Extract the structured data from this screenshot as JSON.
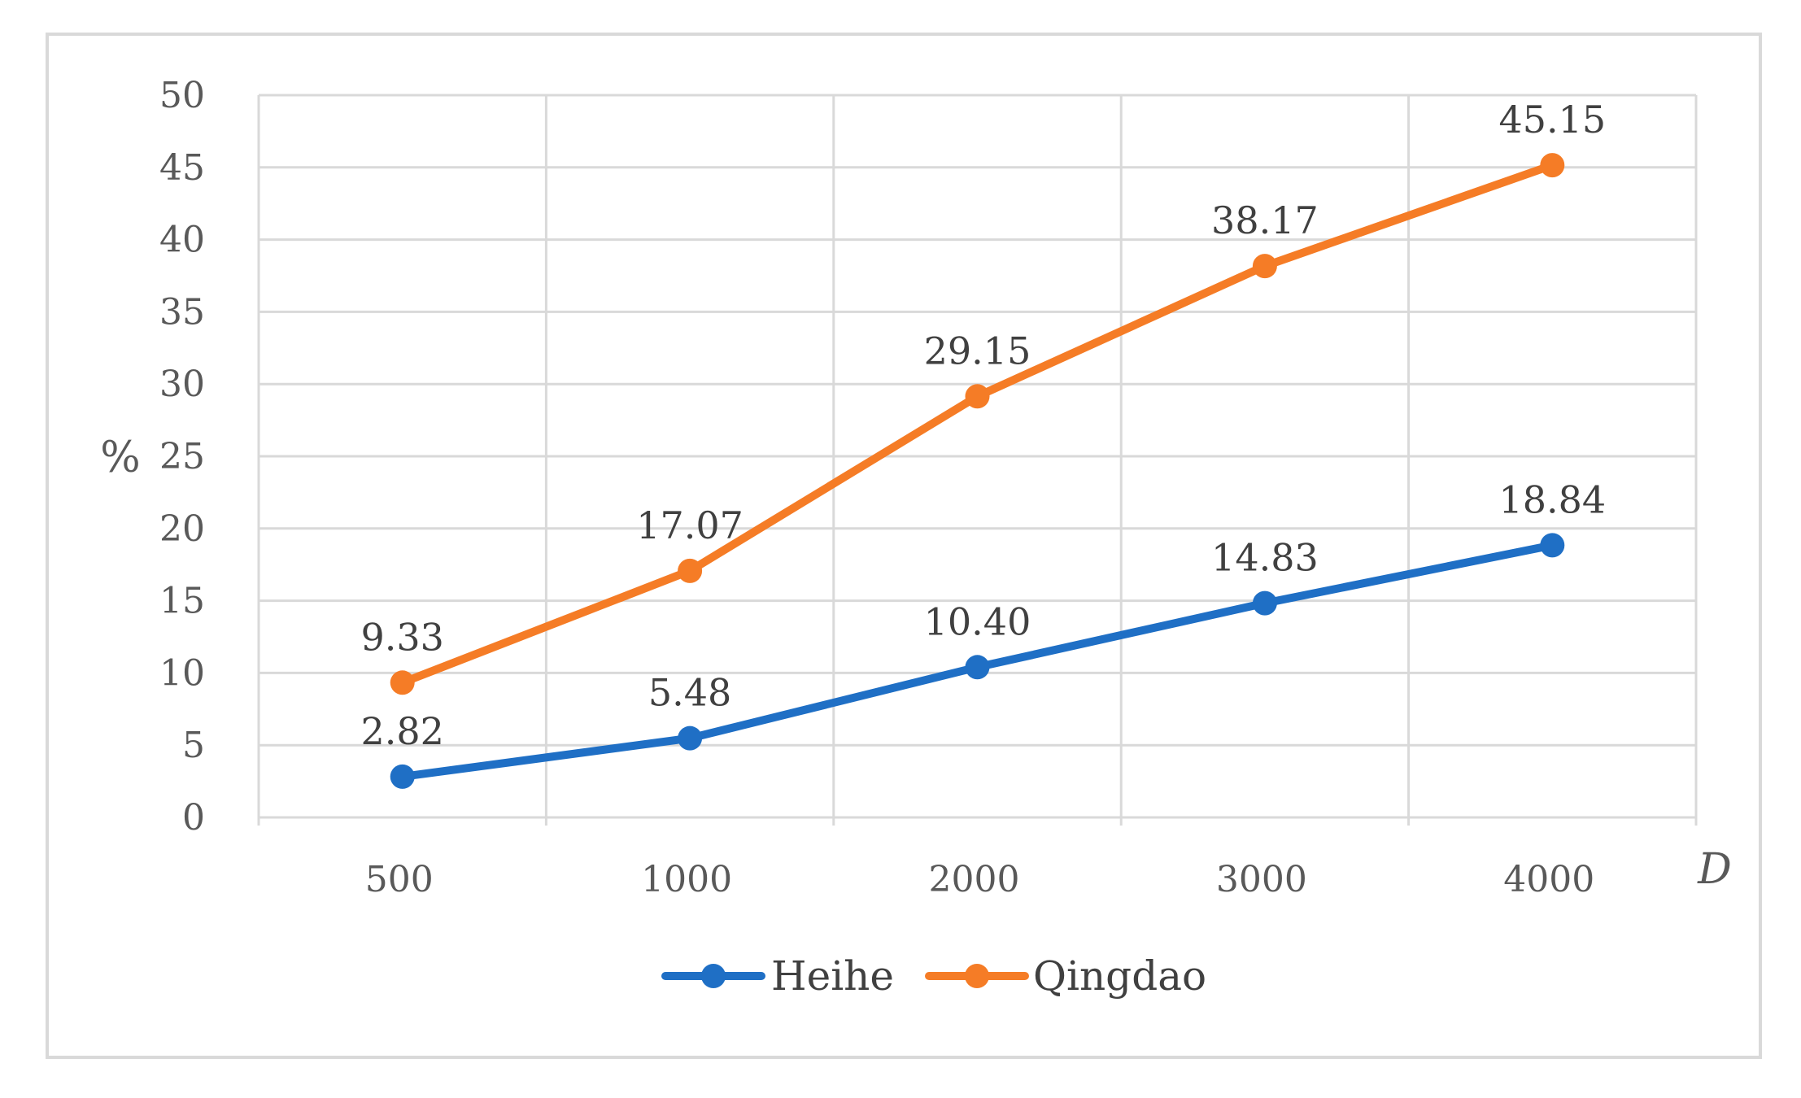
{
  "chart_data": {
    "type": "line",
    "title": "",
    "xlabel": "D",
    "ylabel": "%",
    "categories": [
      "500",
      "1000",
      "2000",
      "3000",
      "4000"
    ],
    "ylim": [
      0,
      50
    ],
    "yticks": [
      "0",
      "5",
      "10",
      "15",
      "20",
      "25",
      "30",
      "35",
      "40",
      "45",
      "50"
    ],
    "grid": true,
    "legend": "bottom",
    "series": [
      {
        "name": "Heihe",
        "color": "#1f6fc5",
        "values": [
          2.82,
          5.48,
          10.4,
          14.83,
          18.84
        ],
        "labels": [
          "2.82",
          "5.48",
          "10.40",
          "14.83",
          "18.84"
        ]
      },
      {
        "name": "Qingdao",
        "color": "#f57c26",
        "values": [
          9.33,
          17.07,
          29.15,
          38.17,
          45.15
        ],
        "labels": [
          "9.33",
          "17.07",
          "29.15",
          "38.17",
          "45.15"
        ]
      }
    ]
  }
}
